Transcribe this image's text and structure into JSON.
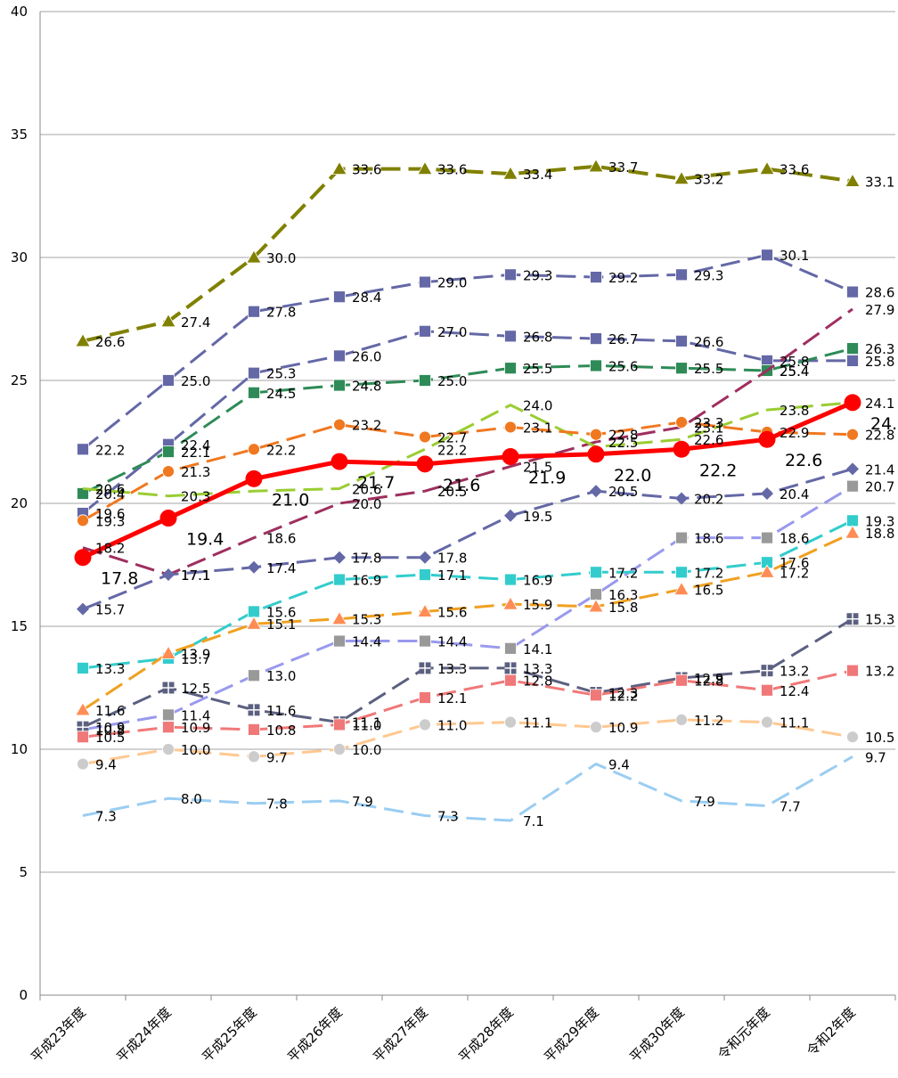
{
  "chart_data": {
    "type": "line",
    "title": "",
    "xlabel": "",
    "ylabel": "",
    "ylim": [
      0,
      40
    ],
    "y_ticks": [
      "0",
      "5",
      "10",
      "15",
      "20",
      "25",
      "30",
      "35",
      "40"
    ],
    "grid": "horizontal",
    "legend": "none",
    "categories": [
      "平成23年度",
      "平成24年度",
      "平成25年度",
      "平成26年度",
      "平成27年度",
      "平成28年度",
      "平成29年度",
      "平成30年度",
      "令和元年度",
      "令和2年度"
    ],
    "series": [
      {
        "color": "#808000",
        "marker": "triangle",
        "dash": "long",
        "width": 4,
        "values": [
          26.6,
          27.4,
          30.0,
          33.6,
          33.6,
          33.4,
          33.7,
          33.2,
          33.6,
          33.1
        ],
        "labels": [
          "26.6",
          "27.4",
          "30.0",
          "33.6",
          "33.6",
          "33.4",
          "33.7",
          "33.2",
          "33.6",
          "33.1"
        ]
      },
      {
        "color": "#6468A6",
        "marker": "square",
        "dash": "long",
        "width": 3,
        "values": [
          22.2,
          25.0,
          27.8,
          28.4,
          29.0,
          29.3,
          29.2,
          29.3,
          30.1,
          28.6
        ],
        "labels": [
          "22.2",
          "25.0",
          "27.8",
          "28.4",
          "29.0",
          "29.3",
          "29.2",
          "29.3",
          "30.1",
          "28.6"
        ]
      },
      {
        "color": "#6468A6",
        "marker": "square",
        "dash": "long",
        "width": 3,
        "values": [
          19.6,
          22.4,
          25.3,
          26.0,
          27.0,
          26.8,
          26.7,
          26.6,
          25.8,
          25.8
        ],
        "labels": [
          "19.6",
          "22.4",
          "25.3",
          "26.0",
          "27.0",
          "26.8",
          "26.7",
          "26.6",
          "25.8",
          "25.8"
        ]
      },
      {
        "color": "#2E8B57",
        "marker": "square",
        "dash": "long",
        "width": 3,
        "values": [
          20.4,
          22.1,
          24.5,
          24.8,
          25.0,
          25.5,
          25.6,
          25.5,
          25.4,
          26.3
        ],
        "labels": [
          "20.4",
          "22.1",
          "24.5",
          "24.8",
          "25.0",
          "25.5",
          "25.6",
          "25.5",
          "25.4",
          "26.3"
        ]
      },
      {
        "color": "#9E2F5E",
        "marker": "none",
        "dash": "long",
        "width": 3,
        "values": [
          18.2,
          17.1,
          18.6,
          20.0,
          20.5,
          21.5,
          22.5,
          23.1,
          25.4,
          27.9
        ],
        "labels": [
          "18.2",
          "17.1",
          "18.6",
          "20.0",
          "20.5",
          "21.5",
          "22.5",
          "23.1",
          "25.4",
          "27.9"
        ]
      },
      {
        "color": "#9ACD32",
        "marker": "none",
        "dash": "long",
        "width": 3,
        "values": [
          20.6,
          20.3,
          20.5,
          20.6,
          22.2,
          24.0,
          22.3,
          22.6,
          23.8,
          24.1
        ],
        "labels": [
          "20.6",
          "20.3",
          "",
          "20.6",
          "22.2",
          "24.0",
          "",
          "22.6",
          "23.8",
          "24.1"
        ]
      },
      {
        "color": "#F07820",
        "marker": "circle",
        "dash": "long",
        "width": 3,
        "values": [
          19.3,
          21.3,
          22.2,
          23.2,
          22.7,
          23.1,
          22.8,
          23.3,
          22.9,
          22.8
        ],
        "labels": [
          "19.3",
          "21.3",
          "22.2",
          "23.2",
          "22.7",
          "23.1",
          "22.8",
          "23.3",
          "22.9",
          "22.8"
        ]
      },
      {
        "color": "#FF0000",
        "marker": "bigcircle",
        "dash": "solid",
        "width": 5,
        "main": true,
        "values": [
          17.8,
          19.4,
          21.0,
          21.7,
          21.6,
          21.9,
          22.0,
          22.2,
          22.6,
          24.1
        ],
        "labels": [
          "17.8",
          "19.4",
          "21.0",
          "21.7",
          "21.6",
          "21.9",
          "22.0",
          "22.2",
          "22.6",
          "24.1"
        ]
      },
      {
        "color": "#6468A6",
        "marker": "diamond",
        "dash": "long",
        "width": 3,
        "values": [
          15.7,
          17.1,
          17.4,
          17.8,
          17.8,
          19.5,
          20.5,
          20.2,
          20.4,
          21.4
        ],
        "labels": [
          "15.7",
          "17.1",
          "17.4",
          "17.8",
          "17.8",
          "19.5",
          "20.5",
          "20.2",
          "20.4",
          "21.4"
        ]
      },
      {
        "color": "#9999EE",
        "marker": "square",
        "markerColor": "#999999",
        "dash": "long",
        "width": 3,
        "values": [
          10.8,
          11.4,
          13.0,
          14.4,
          14.4,
          14.1,
          16.3,
          18.6,
          18.6,
          20.7
        ],
        "labels": [
          "10.8",
          "11.4",
          "13.0",
          "14.4",
          "14.4",
          "14.1",
          "16.3",
          "18.6",
          "18.6",
          "20.7"
        ]
      },
      {
        "color": "#33CCCC",
        "marker": "square",
        "dash": "long",
        "width": 3,
        "values": [
          13.3,
          13.7,
          15.6,
          16.9,
          17.1,
          16.9,
          17.2,
          17.2,
          17.6,
          19.3
        ],
        "labels": [
          "13.3",
          "13.7",
          "15.6",
          "16.9",
          "17.1",
          "16.9",
          "17.2",
          "17.2",
          "17.6",
          "19.3"
        ]
      },
      {
        "color": "#F0A020",
        "marker": "triangle",
        "markerColor": "#FF8C55",
        "dash": "long",
        "width": 3,
        "values": [
          11.6,
          13.9,
          15.1,
          15.3,
          15.6,
          15.9,
          15.8,
          16.5,
          17.2,
          18.8
        ],
        "labels": [
          "11.6",
          "13.9",
          "15.1",
          "15.3",
          "15.6",
          "15.9",
          "15.8",
          "16.5",
          "17.2",
          "18.8"
        ]
      },
      {
        "color": "#5C6080",
        "marker": "plussquare",
        "dash": "long",
        "width": 3,
        "values": [
          10.9,
          12.5,
          11.6,
          11.1,
          13.3,
          13.3,
          12.3,
          12.9,
          13.2,
          15.3
        ],
        "labels": [
          "10.9",
          "12.5",
          "11.6",
          "11.1",
          "13.3",
          "13.3",
          "12.3",
          "12.9",
          "13.2",
          "15.3"
        ]
      },
      {
        "color": "#F07878",
        "marker": "square",
        "dash": "long",
        "width": 3,
        "values": [
          10.5,
          10.9,
          10.8,
          11.0,
          12.1,
          12.8,
          12.2,
          12.8,
          12.4,
          13.2
        ],
        "labels": [
          "10.5",
          "10.9",
          "10.8",
          "11.0",
          "12.1",
          "12.8",
          "12.2",
          "12.8",
          "12.4",
          "13.2"
        ]
      },
      {
        "color": "#FFC890",
        "marker": "circle",
        "markerColor": "#CCCCCC",
        "dash": "long",
        "width": 3,
        "values": [
          9.4,
          10.0,
          9.7,
          10.0,
          11.0,
          11.1,
          10.9,
          11.2,
          11.1,
          10.5
        ],
        "labels": [
          "9.4",
          "10.0",
          "9.7",
          "10.0",
          "11.0",
          "11.1",
          "10.9",
          "11.2",
          "11.1",
          "10.5"
        ]
      },
      {
        "color": "#9ACDF2",
        "marker": "none",
        "dash": "long",
        "width": 3,
        "values": [
          7.3,
          8.0,
          7.8,
          7.9,
          7.3,
          7.1,
          9.4,
          7.9,
          7.7,
          9.7
        ],
        "labels": [
          "7.3",
          "8.0",
          "7.8",
          "7.9",
          "7.3",
          "7.1",
          "9.4",
          "7.9",
          "7.7",
          "9.7"
        ]
      }
    ]
  }
}
